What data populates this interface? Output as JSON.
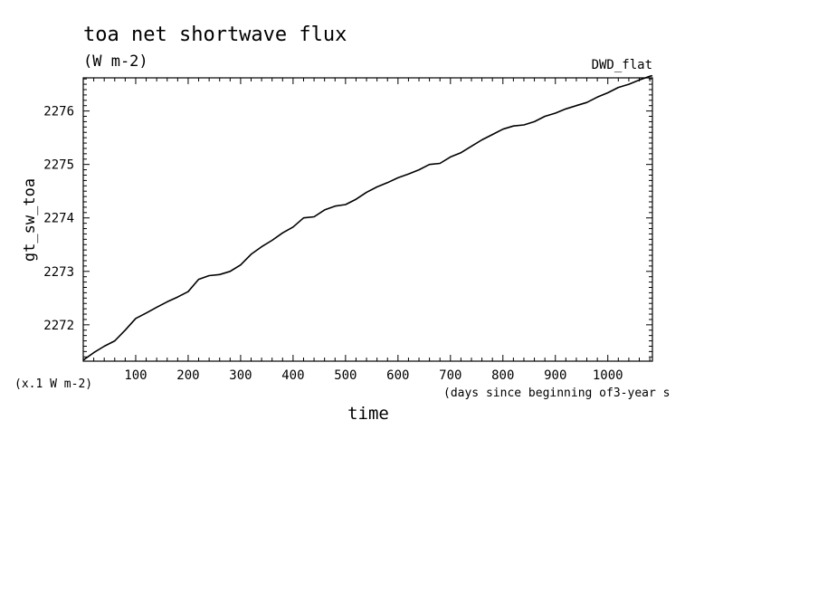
{
  "chart_data": {
    "type": "line",
    "title": "toa net shortwave flux",
    "subtitle": "(W m-2)",
    "tag": "DWD_flat",
    "xlabel": "time",
    "x_units_note": "(days since beginning of3-year s",
    "ylabel": "gt_sw_toa",
    "y_units_note": "(x.1 W m-2)",
    "xlim": [
      0,
      1085
    ],
    "ylim": [
      2271.32,
      2276.62
    ],
    "x_ticks": [
      "100",
      "200",
      "300",
      "400",
      "500",
      "600",
      "700",
      "800",
      "900",
      "1000"
    ],
    "y_ticks": [
      "2272",
      "2273",
      "2274",
      "2275",
      "2276"
    ],
    "grid": false,
    "series": [
      {
        "color": "#000000",
        "x": [
          0,
          20,
          40,
          60,
          80,
          100,
          120,
          140,
          160,
          180,
          200,
          220,
          240,
          260,
          280,
          300,
          320,
          340,
          360,
          380,
          400,
          420,
          440,
          460,
          480,
          500,
          520,
          540,
          560,
          580,
          600,
          620,
          640,
          660,
          680,
          700,
          720,
          740,
          760,
          780,
          800,
          820,
          840,
          860,
          880,
          900,
          920,
          940,
          960,
          980,
          1000,
          1020,
          1040,
          1060,
          1080,
          1085
        ],
        "y": [
          2271.34,
          2271.48,
          2271.6,
          2271.7,
          2271.9,
          2272.12,
          2272.22,
          2272.33,
          2272.43,
          2272.52,
          2272.62,
          2272.85,
          2272.92,
          2272.94,
          2273.0,
          2273.12,
          2273.32,
          2273.46,
          2273.58,
          2273.72,
          2273.83,
          2274.0,
          2274.02,
          2274.15,
          2274.22,
          2274.25,
          2274.35,
          2274.48,
          2274.58,
          2274.66,
          2274.75,
          2274.82,
          2274.9,
          2275.0,
          2275.02,
          2275.14,
          2275.22,
          2275.34,
          2275.46,
          2275.56,
          2275.66,
          2275.72,
          2275.74,
          2275.8,
          2275.9,
          2275.96,
          2276.04,
          2276.1,
          2276.16,
          2276.26,
          2276.34,
          2276.44,
          2276.5,
          2276.58,
          2276.65,
          2276.66
        ]
      }
    ]
  }
}
